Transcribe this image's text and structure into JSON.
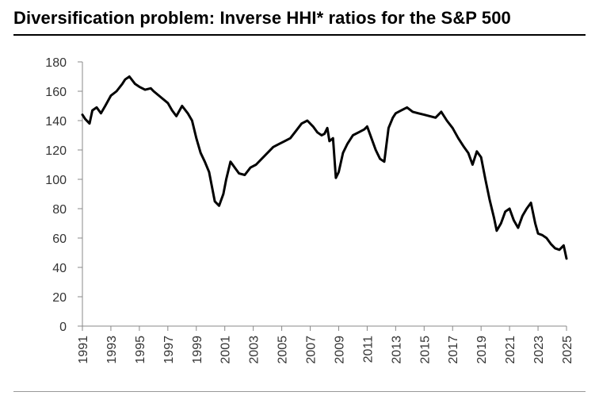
{
  "title": "Diversification problem: Inverse HHI* ratios for the S&P 500",
  "chart_data": {
    "type": "line",
    "title": "Diversification problem: Inverse HHI* ratios for the S&P 500",
    "xlabel": "",
    "ylabel": "",
    "xlim": [
      1991,
      2025
    ],
    "ylim": [
      0,
      180
    ],
    "y_ticks": [
      0,
      20,
      40,
      60,
      80,
      100,
      120,
      140,
      160,
      180
    ],
    "x_ticks": [
      1991,
      1993,
      1995,
      1997,
      1999,
      2001,
      2003,
      2005,
      2007,
      2009,
      2011,
      2013,
      2015,
      2017,
      2019,
      2021,
      2023,
      2025
    ],
    "grid": false,
    "legend": "none",
    "line_color": "#000000",
    "series": [
      {
        "x": [
          1991.0,
          1991.2,
          1991.5,
          1991.7,
          1992.0,
          1992.3,
          1992.6,
          1993.0,
          1993.4,
          1993.8,
          1994.0,
          1994.3,
          1994.7,
          1995.0,
          1995.4,
          1995.8,
          1996.0,
          1996.5,
          1997.0,
          1997.3,
          1997.6,
          1998.0,
          1998.4,
          1998.7,
          1999.0,
          1999.3,
          1999.6,
          1999.9,
          2000.1,
          2000.3,
          2000.6,
          2000.9,
          2001.1,
          2001.4,
          2001.7,
          2002.0,
          2002.4,
          2002.8,
          2003.2,
          2003.6,
          2004.0,
          2004.4,
          2004.8,
          2005.2,
          2005.6,
          2006.0,
          2006.4,
          2006.8,
          2007.2,
          2007.5,
          2007.8,
          2008.0,
          2008.2,
          2008.35,
          2008.6,
          2008.8,
          2009.0,
          2009.3,
          2009.6,
          2010.0,
          2010.4,
          2010.8,
          2011.0,
          2011.3,
          2011.6,
          2011.9,
          2012.2,
          2012.5,
          2012.8,
          2013.0,
          2013.4,
          2013.8,
          2014.2,
          2014.6,
          2015.0,
          2015.4,
          2015.8,
          2016.2,
          2016.6,
          2017.0,
          2017.4,
          2017.8,
          2018.1,
          2018.4,
          2018.7,
          2019.0,
          2019.3,
          2019.6,
          2019.9,
          2020.1,
          2020.4,
          2020.7,
          2021.0,
          2021.3,
          2021.6,
          2021.9,
          2022.2,
          2022.5,
          2022.8,
          2023.0,
          2023.3,
          2023.6,
          2023.9,
          2024.2,
          2024.5,
          2024.8,
          2025.0
        ],
        "y": [
          144,
          141,
          138,
          147,
          149,
          145,
          150,
          157,
          160,
          165,
          168,
          170,
          165,
          163,
          161,
          162,
          160,
          156,
          152,
          147,
          143,
          150,
          145,
          140,
          128,
          118,
          112,
          105,
          95,
          85,
          82,
          90,
          100,
          112,
          108,
          104,
          103,
          108,
          110,
          114,
          118,
          122,
          124,
          126,
          128,
          133,
          138,
          140,
          136,
          132,
          130,
          131,
          135,
          126,
          128,
          101,
          105,
          118,
          124,
          130,
          132,
          134,
          136,
          128,
          120,
          114,
          112,
          135,
          142,
          145,
          147,
          149,
          146,
          145,
          144,
          143,
          142,
          146,
          140,
          135,
          128,
          122,
          118,
          110,
          119,
          115,
          100,
          86,
          74,
          65,
          70,
          78,
          80,
          72,
          67,
          75,
          80,
          84,
          70,
          63,
          62,
          60,
          56,
          53,
          52,
          55,
          46
        ]
      }
    ]
  }
}
